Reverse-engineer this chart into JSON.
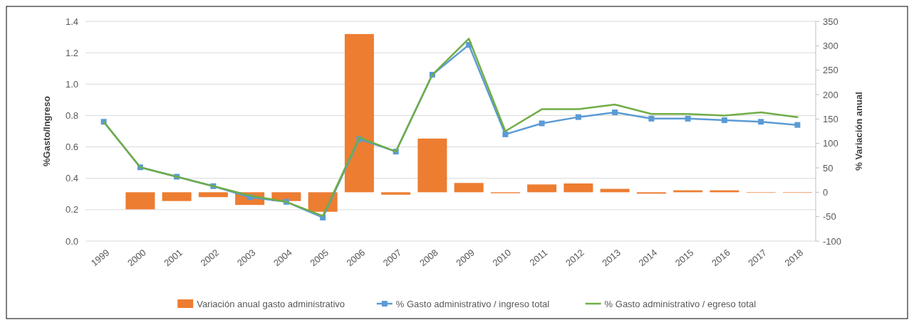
{
  "chart_data": {
    "type": "bar",
    "xlabel": null,
    "ylabel": "%Gasto/Ingreso",
    "y2label": "% Variación anual",
    "categories": [
      "1999",
      "2000",
      "2001",
      "2002",
      "2003",
      "2004",
      "2005",
      "2006",
      "2007",
      "2008",
      "2009",
      "2010",
      "2011",
      "2012",
      "2013",
      "2014",
      "2015",
      "2016",
      "2017",
      "2018"
    ],
    "series": [
      {
        "name": "Variación anual gasto administrativo",
        "axis": "y2",
        "color": "#ed7d31",
        "values": [
          null,
          -35,
          -18,
          -10,
          -26,
          -18,
          -40,
          324,
          -5,
          110,
          19,
          -2,
          16,
          18,
          7,
          -3,
          4,
          4,
          -1,
          -1
        ]
      },
      {
        "name": "% Gasto administrativo / ingreso total",
        "type": "line",
        "color": "#5b9bd5",
        "marker": "square",
        "values": [
          0.76,
          0.47,
          0.41,
          0.35,
          0.28,
          0.25,
          0.15,
          0.65,
          0.57,
          1.06,
          1.25,
          0.68,
          0.75,
          0.79,
          0.82,
          0.78,
          0.78,
          0.77,
          0.76,
          0.74
        ]
      },
      {
        "name": "% Gasto administrativo / egreso total",
        "type": "line",
        "color": "#70ad47",
        "marker": "none",
        "values": [
          0.76,
          0.47,
          0.41,
          0.35,
          0.29,
          0.25,
          0.16,
          0.66,
          0.57,
          1.06,
          1.29,
          0.7,
          0.84,
          0.84,
          0.87,
          0.81,
          0.81,
          0.8,
          0.82,
          0.79
        ]
      }
    ],
    "ylim": [
      0,
      1.4
    ],
    "yticks": [
      {
        "value": 0,
        "label": "0.0"
      },
      {
        "value": 0.2,
        "label": "0.2"
      },
      {
        "value": 0.4,
        "label": "0.4"
      },
      {
        "value": 0.6,
        "label": "0.6"
      },
      {
        "value": 0.8,
        "label": "0.8"
      },
      {
        "value": 1,
        "label": "1.0"
      },
      {
        "value": 1.2,
        "label": "1.2"
      },
      {
        "value": 1.4,
        "label": "1.4"
      }
    ],
    "y2lim": [
      -100,
      350
    ],
    "y2ticks": [
      -100,
      -50,
      0,
      50,
      100,
      150,
      200,
      250,
      300,
      350
    ],
    "grid": "y",
    "legend": "bottom",
    "line_style": "solid"
  }
}
